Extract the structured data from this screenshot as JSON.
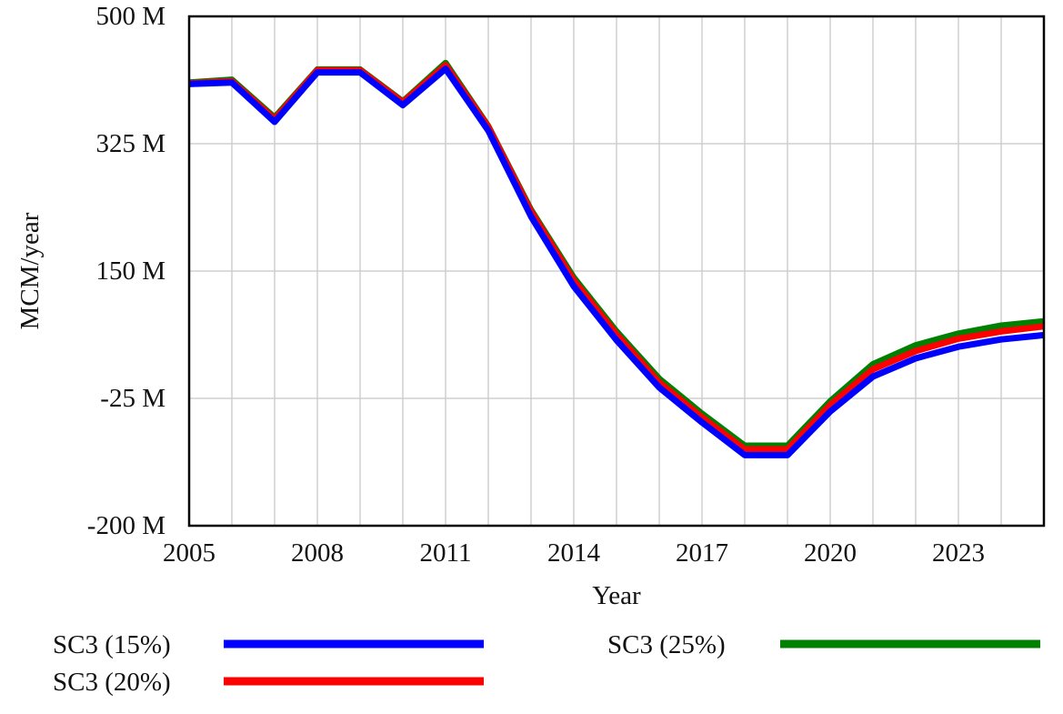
{
  "chart_data": {
    "type": "line",
    "title": "",
    "xlabel": "Year",
    "ylabel": "MCM/year",
    "xlim": [
      2005,
      2025
    ],
    "ylim": [
      -200,
      500
    ],
    "xticks": [
      2005,
      2008,
      2011,
      2014,
      2017,
      2020,
      2023
    ],
    "xtick_labels": [
      "2005",
      "2008",
      "2011",
      "2014",
      "2017",
      "2020",
      "2023"
    ],
    "yticks": [
      -200,
      -25,
      150,
      325,
      500
    ],
    "ytick_labels": [
      "-200 M",
      "-25 M",
      "150 M",
      "325 M",
      "500 M"
    ],
    "grid": true,
    "legend_position": "bottom",
    "x": [
      2005,
      2006,
      2007,
      2008,
      2009,
      2010,
      2011,
      2012,
      2013,
      2014,
      2015,
      2016,
      2017,
      2018,
      2019,
      2020,
      2021,
      2022,
      2023,
      2024,
      2025
    ],
    "series": [
      {
        "name": "SC3 (15%)",
        "color": "#0000ff",
        "values": [
          407,
          409,
          355,
          423,
          423,
          378,
          428,
          343,
          225,
          129,
          55,
          -10,
          -58,
          -103,
          -103,
          -43,
          5,
          30,
          46,
          56,
          62
        ]
      },
      {
        "name": "SC3 (20%)",
        "color": "#ff0000",
        "values": [
          408,
          411,
          359,
          426,
          426,
          382,
          433,
          348,
          232,
          137,
          63,
          -3,
          -51,
          -95,
          -95,
          -34,
          15,
          40,
          57,
          67,
          74
        ]
      },
      {
        "name": "SC3 (25%)",
        "color": "#008000",
        "values": [
          409,
          413,
          361,
          427,
          427,
          383,
          436,
          349,
          234,
          141,
          67,
          2,
          -46,
          -90,
          -90,
          -29,
          22,
          48,
          64,
          75,
          81
        ]
      }
    ]
  }
}
